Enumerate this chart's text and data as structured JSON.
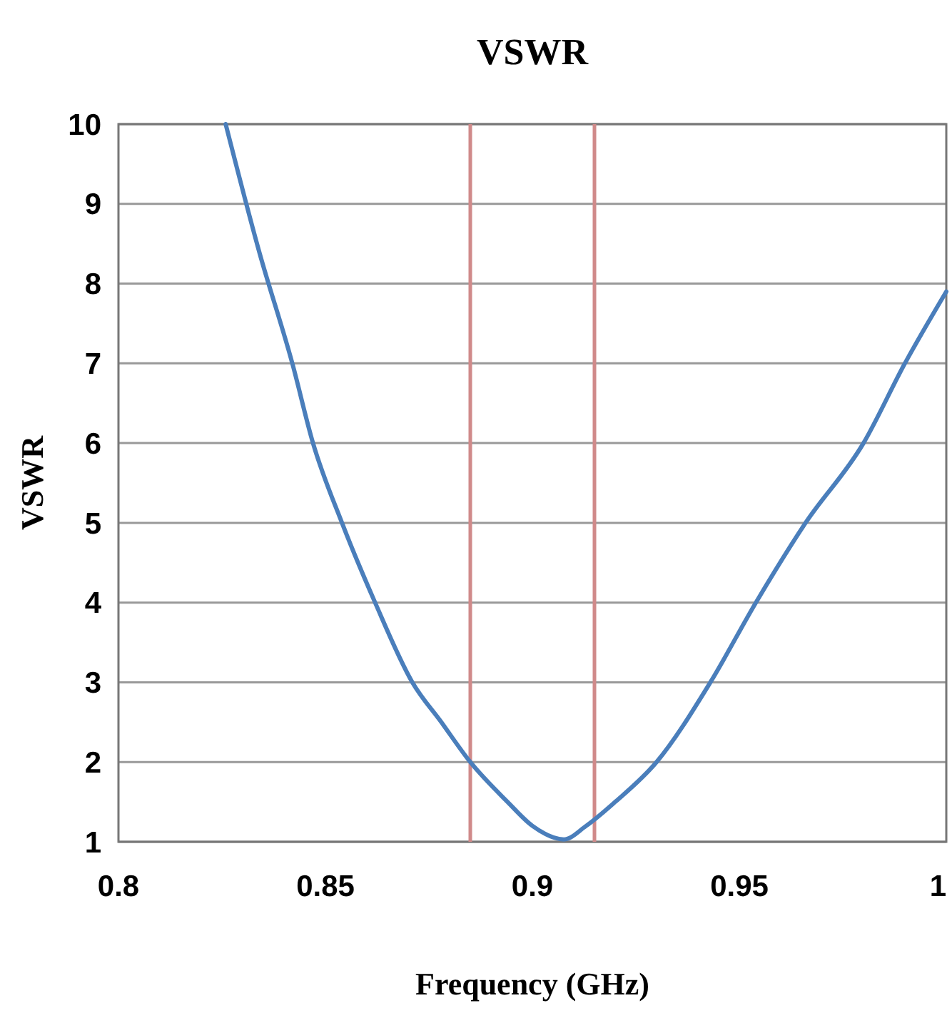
{
  "chart_data": {
    "type": "line",
    "title": "VSWR",
    "xlabel": "Frequency (GHz)",
    "ylabel": "VSWR",
    "series": [
      {
        "color": "#4a7ebb",
        "x": [
          0.8259,
          0.834,
          0.842,
          0.847,
          0.854,
          0.862,
          0.871,
          0.878,
          0.885,
          0.894,
          0.9,
          0.9076,
          0.913,
          0.92,
          0.93,
          0.943,
          0.954,
          0.966,
          0.98,
          0.99,
          1.0
        ],
        "values": [
          10,
          8.4,
          7,
          6,
          5,
          4,
          3,
          2.5,
          2,
          1.5,
          1.2,
          1.03,
          1.2,
          1.5,
          2,
          3,
          4,
          5,
          6,
          7,
          7.9
        ]
      }
    ],
    "xlim": [
      0.8,
      1
    ],
    "xticks": [
      {
        "value": 0.8,
        "label": "0.8"
      },
      {
        "value": 0.85,
        "label": "0.85"
      },
      {
        "value": 0.9,
        "label": "0.9"
      },
      {
        "value": 0.95,
        "label": "0.95"
      },
      {
        "value": 1,
        "label": "1"
      }
    ],
    "ylim": [
      1,
      10
    ],
    "yticks": [
      1,
      2,
      3,
      4,
      5,
      6,
      7,
      8,
      9,
      10
    ],
    "grid": "y",
    "marker": "none",
    "line_style": "solid",
    "ref_lines": [
      {
        "axis": "x",
        "value": 0.885,
        "color": "#d08a8a"
      },
      {
        "axis": "x",
        "value": 0.915,
        "color": "#d08a8a"
      }
    ]
  }
}
